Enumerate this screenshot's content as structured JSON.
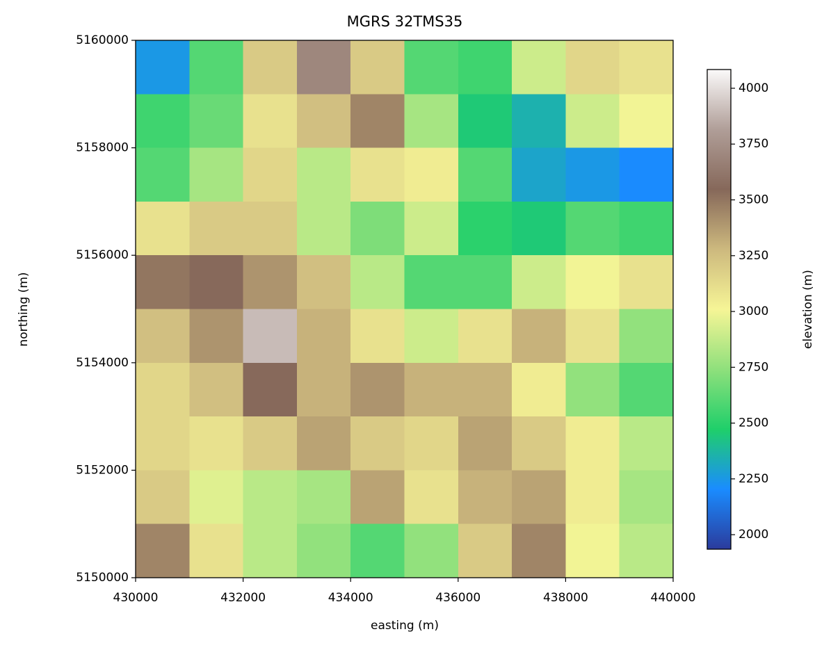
{
  "chart_data": {
    "type": "heatmap",
    "title": "MGRS 32TMS35",
    "xlabel": "easting (m)",
    "ylabel": "northing (m)",
    "xlim": [
      430000,
      440000
    ],
    "xticks": [
      430000,
      432000,
      434000,
      436000,
      438000,
      440000
    ],
    "ylim": [
      5150000,
      5160000
    ],
    "yticks": [
      5150000,
      5152000,
      5154000,
      5156000,
      5158000,
      5160000
    ],
    "z": [
      [
        2250,
        2600,
        3200,
        3700,
        3200,
        2600,
        2550,
        2900,
        3150,
        3100
      ],
      [
        2550,
        2650,
        3100,
        3250,
        3450,
        2800,
        2450,
        2350,
        2900,
        3000
      ],
      [
        2600,
        2800,
        3150,
        2850,
        3100,
        3050,
        2600,
        2300,
        2250,
        2200
      ],
      [
        3100,
        3200,
        3200,
        2850,
        2700,
        2900,
        2500,
        2450,
        2600,
        2550
      ],
      [
        3500,
        3550,
        3400,
        3250,
        2850,
        2600,
        2600,
        2900,
        3000,
        3100
      ],
      [
        3250,
        3400,
        3900,
        3300,
        3100,
        2900,
        3100,
        3300,
        3100,
        2750
      ],
      [
        3150,
        3250,
        3550,
        3300,
        3400,
        3300,
        3300,
        3050,
        2750,
        2600
      ],
      [
        3150,
        3100,
        3200,
        3350,
        3200,
        3150,
        3350,
        3200,
        3050,
        2850
      ],
      [
        3200,
        2950,
        2850,
        2800,
        3350,
        3100,
        3300,
        3350,
        3050,
        2800
      ],
      [
        3450,
        3100,
        2850,
        2750,
        2600,
        2750,
        3200,
        3450,
        3000,
        2850
      ]
    ],
    "colormap": [
      "#2b3b9c",
      "#1a8cff",
      "#1fcf6a",
      "#8fe07c",
      "#f6f596",
      "#cdb97e",
      "#86685a",
      "#b09e98",
      "#fbfafa"
    ],
    "colorbar": {
      "label": "elevation (m)",
      "lim": [
        1935,
        4084
      ],
      "ticks": [
        2000,
        2250,
        2500,
        2750,
        3000,
        3250,
        3500,
        3750,
        4000
      ]
    }
  }
}
